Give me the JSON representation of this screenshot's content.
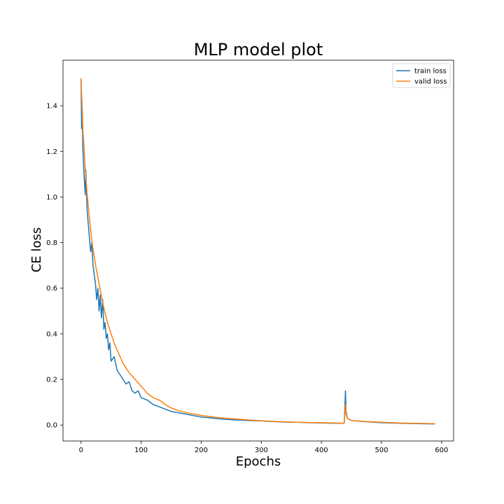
{
  "chart_data": {
    "type": "line",
    "title": "MLP model plot",
    "xlabel": "Epochs",
    "ylabel": "CE loss",
    "xlim": [
      -30,
      620
    ],
    "ylim": [
      -0.07,
      1.6
    ],
    "xticks": [
      0,
      100,
      200,
      300,
      400,
      500,
      600
    ],
    "yticks": [
      0.0,
      0.2,
      0.4,
      0.6,
      0.8,
      1.0,
      1.2,
      1.4
    ],
    "xtick_labels": [
      "0",
      "100",
      "200",
      "300",
      "400",
      "500",
      "600"
    ],
    "ytick_labels": [
      "0.0",
      "0.2",
      "0.4",
      "0.6",
      "0.8",
      "1.0",
      "1.2",
      "1.4"
    ],
    "grid": false,
    "legend_position": "top-right",
    "colors": {
      "train": "#1f77b4",
      "valid": "#ff7f0e"
    },
    "series": [
      {
        "name": "train loss",
        "x": [
          0,
          1,
          2,
          3,
          5,
          7,
          8,
          10,
          12,
          14,
          16,
          18,
          20,
          22,
          24,
          26,
          28,
          30,
          32,
          34,
          36,
          38,
          40,
          42,
          44,
          46,
          48,
          50,
          55,
          60,
          65,
          70,
          75,
          80,
          85,
          90,
          95,
          100,
          110,
          120,
          130,
          140,
          150,
          160,
          170,
          180,
          190,
          200,
          220,
          240,
          260,
          280,
          300,
          320,
          340,
          360,
          380,
          400,
          420,
          438,
          440,
          441,
          443,
          446,
          450,
          470,
          500,
          530,
          560,
          589
        ],
        "y": [
          1.52,
          1.3,
          1.38,
          1.22,
          1.1,
          1.01,
          1.12,
          0.95,
          0.88,
          0.82,
          0.76,
          0.8,
          0.7,
          0.66,
          0.62,
          0.55,
          0.6,
          0.5,
          0.57,
          0.47,
          0.55,
          0.42,
          0.45,
          0.38,
          0.4,
          0.33,
          0.36,
          0.28,
          0.3,
          0.24,
          0.22,
          0.2,
          0.18,
          0.19,
          0.15,
          0.14,
          0.15,
          0.12,
          0.11,
          0.09,
          0.08,
          0.07,
          0.06,
          0.055,
          0.05,
          0.045,
          0.04,
          0.035,
          0.03,
          0.025,
          0.022,
          0.02,
          0.018,
          0.015,
          0.013,
          0.012,
          0.01,
          0.009,
          0.008,
          0.008,
          0.15,
          0.06,
          0.03,
          0.025,
          0.02,
          0.015,
          0.01,
          0.008,
          0.006,
          0.005
        ]
      },
      {
        "name": "valid loss",
        "x": [
          0,
          1,
          2,
          3,
          5,
          7,
          10,
          12,
          15,
          18,
          20,
          25,
          30,
          35,
          40,
          45,
          50,
          55,
          60,
          65,
          70,
          75,
          80,
          90,
          100,
          110,
          120,
          130,
          140,
          150,
          160,
          170,
          180,
          190,
          200,
          220,
          240,
          260,
          280,
          300,
          320,
          340,
          360,
          380,
          400,
          420,
          438,
          440,
          441,
          443,
          446,
          450,
          470,
          500,
          530,
          560,
          589
        ],
        "y": [
          1.52,
          1.45,
          1.38,
          1.3,
          1.22,
          1.12,
          1.02,
          0.96,
          0.88,
          0.81,
          0.77,
          0.69,
          0.62,
          0.55,
          0.49,
          0.44,
          0.4,
          0.36,
          0.33,
          0.3,
          0.27,
          0.25,
          0.23,
          0.2,
          0.17,
          0.14,
          0.12,
          0.11,
          0.09,
          0.075,
          0.065,
          0.058,
          0.052,
          0.047,
          0.042,
          0.035,
          0.03,
          0.026,
          0.022,
          0.019,
          0.016,
          0.014,
          0.012,
          0.011,
          0.01,
          0.009,
          0.008,
          0.09,
          0.05,
          0.03,
          0.025,
          0.02,
          0.016,
          0.012,
          0.009,
          0.007,
          0.006
        ]
      }
    ]
  }
}
